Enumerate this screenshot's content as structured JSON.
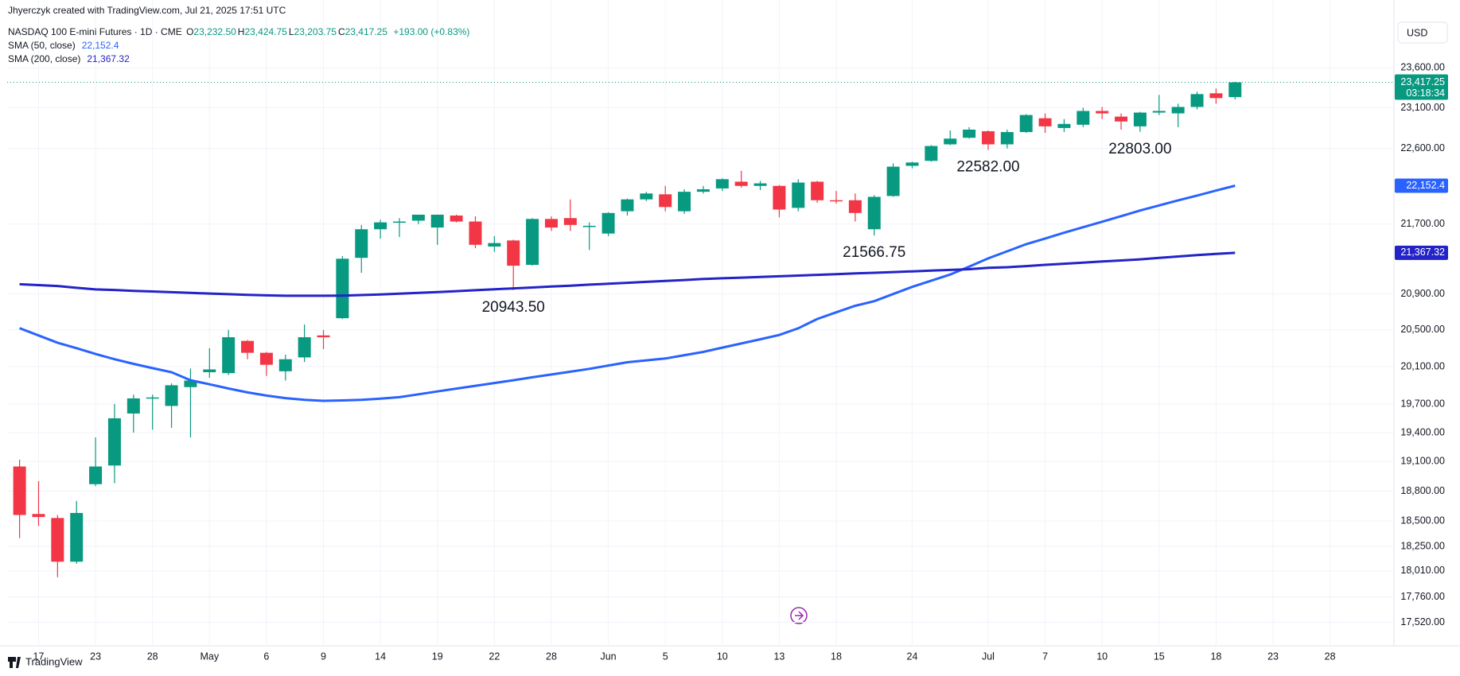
{
  "header": {
    "author_line": "Jhyerczyk created with TradingView.com, Jul 21, 2025 17:51 UTC",
    "currency": "USD"
  },
  "footer": {
    "brand": "TradingView"
  },
  "chart_data": {
    "type": "candlestick",
    "title": "NASDAQ 100 E-mini Futures · 1D · CME",
    "ohlc_legend": [
      {
        "key": "O",
        "value": "23,232.50"
      },
      {
        "key": "H",
        "value": "23,424.75"
      },
      {
        "key": "L",
        "value": "23,203.75"
      },
      {
        "key": "C",
        "value": "23,417.25"
      }
    ],
    "change": "+193.00 (+0.83%)",
    "up_color": "#089981",
    "down_color": "#f23645",
    "last_price_label": "23,417.25",
    "countdown": "03:18:34",
    "log_scale": true,
    "grid": true,
    "categories": [
      null,
      "17",
      null,
      null,
      "23",
      null,
      null,
      "28",
      null,
      null,
      "May",
      null,
      null,
      "6",
      null,
      null,
      "9",
      null,
      null,
      "14",
      null,
      null,
      "19",
      null,
      null,
      "22",
      null,
      null,
      "28",
      null,
      null,
      "Jun",
      null,
      null,
      "5",
      null,
      null,
      "10",
      null,
      null,
      "13",
      null,
      null,
      "18",
      null,
      null,
      null,
      "24",
      null,
      null,
      null,
      "Jul",
      null,
      null,
      "7",
      null,
      null,
      "10",
      null,
      null,
      "15",
      null,
      null,
      "18",
      null,
      null,
      "23",
      null,
      null,
      "28"
    ],
    "open": [
      19050,
      18570,
      18530,
      18100,
      18870,
      19060,
      19600,
      19760,
      19680,
      19880,
      20040,
      20030,
      20380,
      20250,
      20050,
      20200,
      20440,
      20630,
      21310,
      21640,
      21720,
      21740,
      21660,
      21800,
      21730,
      21440,
      21510,
      21230,
      21760,
      21770,
      21680,
      21590,
      21850,
      21990,
      22050,
      21850,
      22080,
      22120,
      22200,
      22150,
      22150,
      21890,
      22200,
      21980,
      21980,
      21640,
      22030,
      22390,
      22450,
      22650,
      22730,
      22810,
      22650,
      22800,
      22970,
      22850,
      22890,
      23060,
      22990,
      22870,
      23040,
      23030,
      23110,
      23280,
      23232.5,
      null,
      null,
      null,
      null,
      null
    ],
    "high": [
      19120,
      18900,
      18560,
      18700,
      19350,
      19700,
      19800,
      19800,
      19920,
      20080,
      20300,
      20500,
      20390,
      20260,
      20230,
      20560,
      20500,
      21330,
      21690,
      21750,
      21770,
      21810,
      21810,
      21810,
      21790,
      21560,
      21520,
      21770,
      21790,
      21990,
      21720,
      21840,
      22000,
      22080,
      22150,
      22110,
      22150,
      22240,
      22330,
      22210,
      22160,
      22230,
      22210,
      22090,
      22060,
      22040,
      22420,
      22440,
      22640,
      22820,
      22860,
      22820,
      22830,
      23020,
      23030,
      22960,
      23100,
      23110,
      23030,
      23050,
      23260,
      23150,
      23300,
      23340,
      23424.75,
      null,
      null,
      null,
      null,
      null
    ],
    "low": [
      18330,
      18450,
      17950,
      18080,
      18850,
      18880,
      19400,
      19430,
      19450,
      19350,
      19980,
      20010,
      20180,
      20000,
      19950,
      20150,
      20290,
      20620,
      21140,
      21530,
      21550,
      21700,
      21460,
      21720,
      21420,
      21380,
      20943.5,
      21220,
      21620,
      21620,
      21400,
      21560,
      21800,
      21970,
      21850,
      21820,
      22060,
      22090,
      22130,
      22100,
      21780,
      21850,
      21950,
      21940,
      21730,
      21566.75,
      22020,
      22360,
      22440,
      22640,
      22720,
      22582,
      22600,
      22790,
      22790,
      22800,
      22860,
      22960,
      22830,
      22803,
      23010,
      22860,
      23080,
      23150,
      23203.75,
      null,
      null,
      null,
      null,
      null
    ],
    "close": [
      18560,
      18540,
      18100,
      18580,
      19050,
      19550,
      19760,
      19770,
      19900,
      19950,
      20070,
      20420,
      20250,
      20120,
      20180,
      20420,
      20420,
      21300,
      21640,
      21720,
      21730,
      21810,
      21810,
      21730,
      21460,
      21480,
      21220,
      21760,
      21660,
      21690,
      21680,
      21830,
      21990,
      22060,
      21900,
      22080,
      22110,
      22230,
      22150,
      22180,
      21870,
      22190,
      21980,
      21970,
      21830,
      22020,
      22380,
      22430,
      22630,
      22720,
      22830,
      22650,
      22800,
      23010,
      22870,
      22900,
      23060,
      23030,
      22930,
      23040,
      23060,
      23110,
      23270,
      23220,
      23417.25,
      null,
      null,
      null,
      null,
      null
    ],
    "series": [
      {
        "name": "SMA (50, close)",
        "color": "#2962ff",
        "last_label": "22,152.4",
        "values": [
          20520,
          20440,
          20360,
          20300,
          20237,
          20180,
          20130,
          20084,
          20040,
          19954,
          19910,
          19865,
          19824,
          19790,
          19763,
          19745,
          19734,
          19738,
          19744,
          19758,
          19773,
          19803,
          19834,
          19864,
          19894,
          19924,
          19954,
          19985,
          20015,
          20045,
          20076,
          20112,
          20147,
          20168,
          20188,
          20224,
          20260,
          20306,
          20352,
          20398,
          20445,
          20518,
          20621,
          20695,
          20768,
          20820,
          20900,
          20980,
          21050,
          21120,
          21210,
          21304,
          21385,
          21467,
          21533,
          21600,
          21664,
          21728,
          21793,
          21859,
          21919,
          21979,
          22035,
          22095,
          22152.4,
          null,
          null,
          null,
          null,
          null
        ]
      },
      {
        "name": "SMA (200, close)",
        "color": "#2323c8",
        "last_label": "21,367.32",
        "values": [
          21010,
          21000,
          20990,
          20970,
          20952,
          20945,
          20935,
          20928,
          20920,
          20912,
          20905,
          20898,
          20890,
          20885,
          20880,
          20880,
          20880,
          20882,
          20888,
          20895,
          20903,
          20912,
          20922,
          20932,
          20943,
          20953,
          20963,
          20973,
          20984,
          20994,
          21005,
          21015,
          21026,
          21037,
          21048,
          21058,
          21069,
          21077,
          21085,
          21093,
          21100,
          21108,
          21116,
          21124,
          21132,
          21140,
          21148,
          21156,
          21164,
          21172,
          21180,
          21196,
          21203,
          21216,
          21230,
          21243,
          21256,
          21268,
          21280,
          21293,
          21310,
          21326,
          21342,
          21355,
          21367.32,
          null,
          null,
          null,
          null,
          null
        ]
      }
    ],
    "annotations": [
      {
        "text": "20943.50",
        "index": 26
      },
      {
        "text": "21566.75",
        "index": 45
      },
      {
        "text": "22582.00",
        "index": 51
      },
      {
        "text": "22803.00",
        "index": 59
      }
    ],
    "ylim": [
      17434,
      24227
    ],
    "yticks": [
      {
        "value": 23600,
        "label": "23,600.00"
      },
      {
        "value": 23100,
        "label": "23,100.00"
      },
      {
        "value": 22600,
        "label": "22,600.00"
      },
      {
        "value": 21700,
        "label": "21,700.00"
      },
      {
        "value": 20900,
        "label": "20,900.00"
      },
      {
        "value": 20500,
        "label": "20,500.00"
      },
      {
        "value": 20100,
        "label": "20,100.00"
      },
      {
        "value": 19700,
        "label": "19,700.00"
      },
      {
        "value": 19400,
        "label": "19,400.00"
      },
      {
        "value": 19100,
        "label": "19,100.00"
      },
      {
        "value": 18800,
        "label": "18,800.00"
      },
      {
        "value": 18500,
        "label": "18,500.00"
      },
      {
        "value": 18250,
        "label": "18,250.00"
      },
      {
        "value": 18010,
        "label": "18,010.00"
      },
      {
        "value": 17760,
        "label": "17,760.00"
      },
      {
        "value": 17520,
        "label": "17,520.00"
      }
    ]
  }
}
